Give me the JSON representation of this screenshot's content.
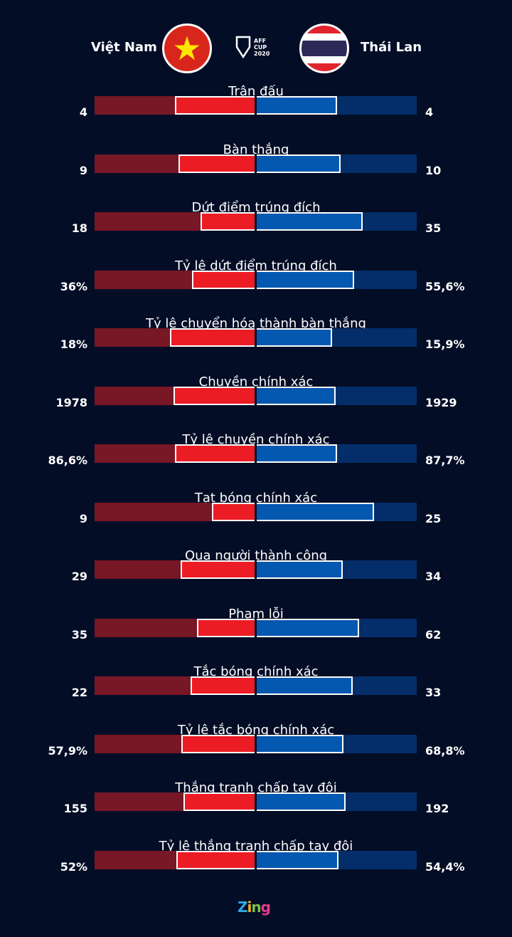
{
  "header": {
    "left_team": "Việt Nam",
    "right_team": "Thái Lan",
    "logo_text": "AFF CUP 2020"
  },
  "colors": {
    "background": "#030d26",
    "vn_fill": "#ec1c24",
    "vn_track": "#781726",
    "th_fill": "#0558b0",
    "th_track": "#042e69"
  },
  "chart_data": {
    "type": "bar",
    "series": [
      {
        "name": "Việt Nam"
      },
      {
        "name": "Thái Lan"
      }
    ],
    "rows": [
      {
        "label": "Trận đấu",
        "left": "4",
        "right": "4",
        "lv": 4,
        "rv": 4
      },
      {
        "label": "Bàn thắng",
        "left": "9",
        "right": "10",
        "lv": 9,
        "rv": 10
      },
      {
        "label": "Dứt điểm trúng đích",
        "left": "18",
        "right": "35",
        "lv": 18,
        "rv": 35
      },
      {
        "label": "Tỷ lệ dứt điểm trúng đích",
        "left": "36%",
        "right": "55,6%",
        "lv": 36,
        "rv": 55.6
      },
      {
        "label": "Tỷ lệ chuyển hóa thành bàn thắng",
        "left": "18%",
        "right": "15,9%",
        "lv": 18,
        "rv": 15.9
      },
      {
        "label": "Chuyền chính xác",
        "left": "1978",
        "right": "1929",
        "lv": 1978,
        "rv": 1929
      },
      {
        "label": "Tỷ lệ chuyền chính xác",
        "left": "86,6%",
        "right": "87,7%",
        "lv": 86.6,
        "rv": 87.7
      },
      {
        "label": "Tạt bóng chính xác",
        "left": "9",
        "right": "25",
        "lv": 9,
        "rv": 25
      },
      {
        "label": "Qua người thành công",
        "left": "29",
        "right": "34",
        "lv": 29,
        "rv": 34
      },
      {
        "label": "Phạm lỗi",
        "left": "35",
        "right": "62",
        "lv": 35,
        "rv": 62
      },
      {
        "label": "Tắc bóng chính xác",
        "left": "22",
        "right": "33",
        "lv": 22,
        "rv": 33
      },
      {
        "label": "Tỷ lệ tắc bóng chính xác",
        "left": "57,9%",
        "right": "68,8%",
        "lv": 57.9,
        "rv": 68.8
      },
      {
        "label": "Thắng tranh chấp tay đôi",
        "left": "155",
        "right": "192",
        "lv": 155,
        "rv": 192
      },
      {
        "label": "Tỷ lệ thắng tranh chấp tay đôi",
        "left": "52%",
        "right": "54,4%",
        "lv": 52,
        "rv": 54.4
      }
    ]
  },
  "footer": {
    "brand": "Zing"
  }
}
